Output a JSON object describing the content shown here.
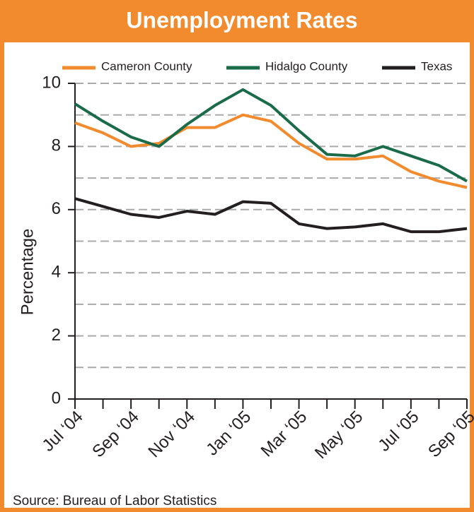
{
  "chart_data": {
    "type": "line",
    "title": "Unemployment Rates",
    "y_label": "Percentage",
    "source": "Source: Bureau of Labor Statistics",
    "categories": [
      "Jul ‘04",
      null,
      "Sep ‘04",
      null,
      "Nov ‘04",
      null,
      "Jan ‘05",
      null,
      "Mar ‘05",
      null,
      "May ‘05",
      null,
      "Jul ‘05",
      null,
      "Sep ‘05"
    ],
    "series": [
      {
        "name": "Cameron County",
        "color": "#f28a2e",
        "values": [
          8.75,
          8.43,
          8.0,
          8.1,
          8.6,
          8.6,
          9.0,
          8.8,
          8.1,
          7.6,
          7.6,
          7.7,
          7.2,
          6.9,
          6.7
        ]
      },
      {
        "name": "Hidalgo County",
        "color": "#1a6b4a",
        "values": [
          9.35,
          8.8,
          8.3,
          8.0,
          8.7,
          9.3,
          9.8,
          9.3,
          8.5,
          7.75,
          7.7,
          8.0,
          7.7,
          7.4,
          6.9
        ]
      },
      {
        "name": "Texas",
        "color": "#231f20",
        "values": [
          6.35,
          6.1,
          5.85,
          5.75,
          5.95,
          5.85,
          6.25,
          6.2,
          5.55,
          5.4,
          5.45,
          5.55,
          5.3,
          5.3,
          5.4
        ]
      }
    ],
    "ylim": [
      0,
      10
    ],
    "yticks": [
      0,
      2,
      4,
      6,
      8,
      10
    ],
    "minor_yticks": [
      1,
      3,
      5,
      7,
      9
    ],
    "grid": true,
    "legend": "top"
  }
}
